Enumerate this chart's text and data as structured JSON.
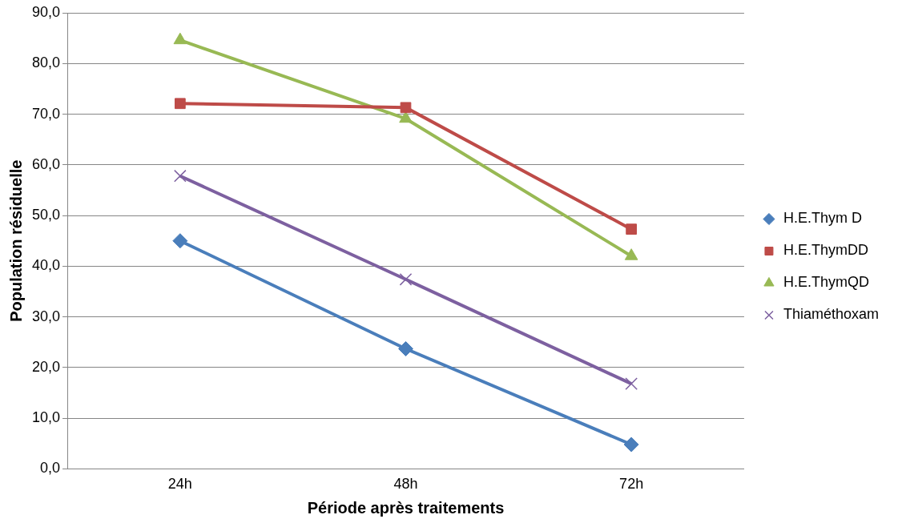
{
  "chart_data": {
    "type": "line",
    "xlabel": "Période après traitements",
    "ylabel": "Population résiduelle",
    "categories": [
      "24h",
      "48h",
      "72h"
    ],
    "series": [
      {
        "name": "H.E.Thym D",
        "color": "#4a7ebb",
        "marker": "diamond",
        "values": [
          45.0,
          23.7,
          4.8
        ]
      },
      {
        "name": "H.E.ThymDD",
        "color": "#be4b48",
        "marker": "square",
        "values": [
          72.1,
          71.3,
          47.3
        ]
      },
      {
        "name": "H.E.ThymQD",
        "color": "#98b954",
        "marker": "triangle",
        "values": [
          84.6,
          69.1,
          42.0
        ]
      },
      {
        "name": "Thiaméthoxam",
        "color": "#7d60a0",
        "marker": "cross",
        "values": [
          57.8,
          37.4,
          16.8
        ]
      }
    ],
    "ylim": [
      0,
      90
    ],
    "yticks": [
      {
        "value": 0,
        "label": "0,0"
      },
      {
        "value": 10,
        "label": "10,0"
      },
      {
        "value": 20,
        "label": "20,0"
      },
      {
        "value": 30,
        "label": "30,0"
      },
      {
        "value": 40,
        "label": "40,0"
      },
      {
        "value": 50,
        "label": "50,0"
      },
      {
        "value": 60,
        "label": "60,0"
      },
      {
        "value": 70,
        "label": "70,0"
      },
      {
        "value": 80,
        "label": "80,0"
      },
      {
        "value": 90,
        "label": "90,0"
      }
    ],
    "grid": "y",
    "legend": "right",
    "line_style": "solid"
  }
}
